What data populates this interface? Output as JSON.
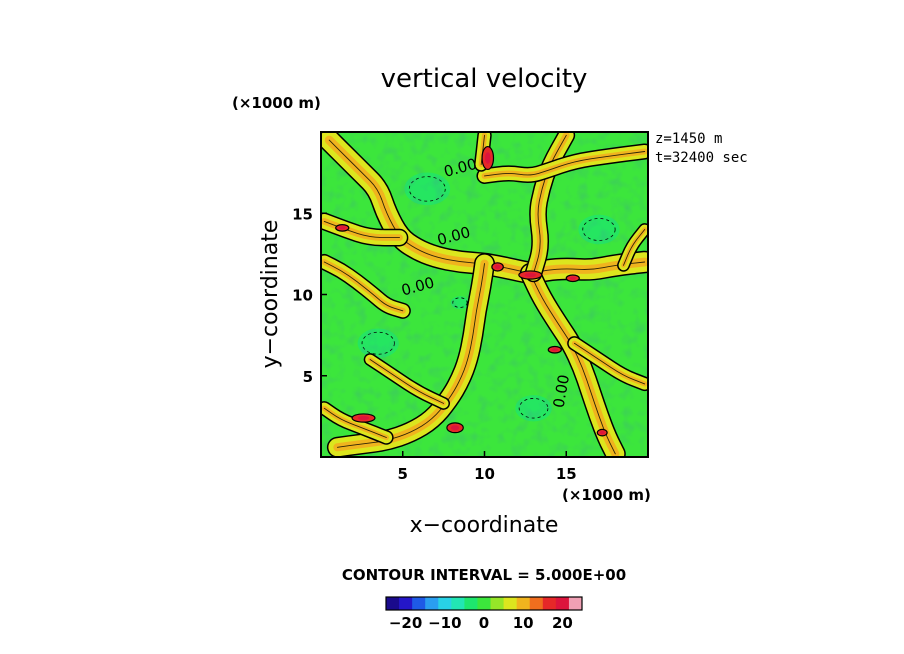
{
  "chart_data": {
    "type": "heatmap",
    "title": "vertical velocity",
    "xlabel": "x−coordinate",
    "ylabel": "y−coordinate",
    "x_unit": "(×1000 m)",
    "y_unit": "(×1000 m)",
    "xlim": [
      0,
      20
    ],
    "ylim": [
      0,
      20
    ],
    "x_ticks": [
      5,
      10,
      15
    ],
    "y_ticks": [
      5,
      10,
      15
    ],
    "x_tick_labels": [
      "5",
      "10",
      "15"
    ],
    "y_tick_labels": [
      "5",
      "10",
      "15"
    ],
    "info_lines": [
      "z=1450  m",
      "t=32400  sec"
    ],
    "contour_interval_text": "CONTOUR INTERVAL = 5.000E+00",
    "contour_interval": 5.0,
    "contour_labels": [
      {
        "text": "0.00",
        "x": 8.6,
        "y": 17.5
      },
      {
        "text": "0.00",
        "x": 8.2,
        "y": 13.3
      },
      {
        "text": "0.00",
        "x": 6.0,
        "y": 10.2
      },
      {
        "text": "0.00",
        "x": 15.0,
        "y": 4.0
      }
    ],
    "colorbar": {
      "range": [
        -25,
        25
      ],
      "tick_values": [
        -20,
        -10,
        0,
        10,
        20
      ],
      "tick_labels": [
        "−20",
        "−10",
        "0",
        "10",
        "20"
      ],
      "colors": [
        "#1a0a8c",
        "#2416c8",
        "#1e5ae6",
        "#2a9ef0",
        "#28d2e6",
        "#22e6b4",
        "#1ee66e",
        "#3ce63c",
        "#96e628",
        "#dce61e",
        "#f0b41e",
        "#f06e1e",
        "#e62828",
        "#dc143c",
        "#f0a0b4"
      ]
    },
    "field_description_values": {
      "background_value": 0,
      "updraft_band_values": [
        5,
        10
      ],
      "updraft_core_values": [
        15,
        20
      ],
      "downdraft_values": [
        -5,
        -10
      ]
    },
    "updraft_bands": [
      {
        "points": [
          [
            0.5,
            19.5
          ],
          [
            1.5,
            18.5
          ],
          [
            2.5,
            17.5
          ],
          [
            3.5,
            16.5
          ],
          [
            4.0,
            15.0
          ],
          [
            4.8,
            13.5
          ],
          [
            5.8,
            12.8
          ],
          [
            7.0,
            12.3
          ],
          [
            8.5,
            12.0
          ],
          [
            10.0,
            11.9
          ],
          [
            11.5,
            11.6
          ],
          [
            12.8,
            11.3
          ],
          [
            13.8,
            11.5
          ],
          [
            15.0,
            11.6
          ],
          [
            16.5,
            11.5
          ],
          [
            18.0,
            11.8
          ],
          [
            19.8,
            12.0
          ]
        ],
        "width": 1.2
      },
      {
        "points": [
          [
            0.2,
            14.5
          ],
          [
            1.5,
            14.0
          ],
          [
            3.0,
            13.5
          ],
          [
            4.8,
            13.5
          ]
        ],
        "width": 0.9
      },
      {
        "points": [
          [
            0.2,
            12.0
          ],
          [
            1.2,
            11.5
          ],
          [
            2.2,
            10.8
          ],
          [
            3.2,
            10.0
          ],
          [
            4.0,
            9.3
          ],
          [
            5.0,
            9.0
          ]
        ],
        "width": 0.8
      },
      {
        "points": [
          [
            10.0,
            11.9
          ],
          [
            9.8,
            10.5
          ],
          [
            9.5,
            9.0
          ],
          [
            9.3,
            7.5
          ],
          [
            9.0,
            6.0
          ],
          [
            8.5,
            4.7
          ],
          [
            7.8,
            3.5
          ],
          [
            6.8,
            2.3
          ],
          [
            5.5,
            1.5
          ],
          [
            4.0,
            1.0
          ],
          [
            2.5,
            0.8
          ],
          [
            1.0,
            0.6
          ]
        ],
        "width": 1.1
      },
      {
        "points": [
          [
            12.8,
            11.3
          ],
          [
            13.5,
            9.8
          ],
          [
            14.5,
            8.2
          ],
          [
            15.3,
            7.0
          ],
          [
            16.0,
            5.5
          ],
          [
            16.5,
            4.0
          ],
          [
            17.0,
            2.5
          ],
          [
            17.5,
            1.2
          ],
          [
            18.0,
            0.2
          ]
        ],
        "width": 1.1
      },
      {
        "points": [
          [
            13.0,
            11.3
          ],
          [
            13.5,
            13.0
          ],
          [
            13.2,
            15.0
          ],
          [
            13.5,
            16.5
          ],
          [
            14.0,
            18.0
          ],
          [
            15.0,
            19.8
          ]
        ],
        "width": 0.9
      },
      {
        "points": [
          [
            10.0,
            17.3
          ],
          [
            11.5,
            17.5
          ],
          [
            12.8,
            17.3
          ],
          [
            13.8,
            17.6
          ],
          [
            15.5,
            18.2
          ],
          [
            17.5,
            18.5
          ],
          [
            19.8,
            18.8
          ]
        ],
        "width": 0.8
      },
      {
        "points": [
          [
            9.8,
            18.0
          ],
          [
            10.0,
            19.8
          ]
        ],
        "width": 0.7
      },
      {
        "points": [
          [
            0.2,
            3.0
          ],
          [
            1.2,
            2.3
          ],
          [
            2.5,
            1.8
          ],
          [
            4.0,
            1.2
          ]
        ],
        "width": 0.7
      },
      {
        "points": [
          [
            15.5,
            7.0
          ],
          [
            17.0,
            6.0
          ],
          [
            18.5,
            5.0
          ],
          [
            19.8,
            4.5
          ]
        ],
        "width": 0.7
      },
      {
        "points": [
          [
            3.0,
            6.0
          ],
          [
            4.5,
            5.0
          ],
          [
            6.0,
            4.0
          ],
          [
            7.5,
            3.3
          ]
        ],
        "width": 0.6
      },
      {
        "points": [
          [
            18.5,
            11.8
          ],
          [
            19.0,
            13.0
          ],
          [
            19.8,
            14.0
          ]
        ],
        "width": 0.6
      }
    ],
    "updraft_cores": [
      {
        "x": 10.2,
        "y": 18.4,
        "rx": 0.35,
        "ry": 0.7
      },
      {
        "x": 12.8,
        "y": 11.2,
        "rx": 0.7,
        "ry": 0.25
      },
      {
        "x": 10.8,
        "y": 11.7,
        "rx": 0.35,
        "ry": 0.25
      },
      {
        "x": 2.6,
        "y": 2.4,
        "rx": 0.7,
        "ry": 0.25
      },
      {
        "x": 8.2,
        "y": 1.8,
        "rx": 0.5,
        "ry": 0.3
      },
      {
        "x": 15.4,
        "y": 11.0,
        "rx": 0.4,
        "ry": 0.2
      },
      {
        "x": 14.3,
        "y": 6.6,
        "rx": 0.4,
        "ry": 0.2
      },
      {
        "x": 1.3,
        "y": 14.1,
        "rx": 0.4,
        "ry": 0.2
      },
      {
        "x": 17.2,
        "y": 1.5,
        "rx": 0.3,
        "ry": 0.2
      }
    ],
    "downdraft_patches": [
      {
        "x": 8.5,
        "y": 9.5,
        "r": 0.4
      },
      {
        "x": 6.5,
        "y": 16.5,
        "r": 1.0
      },
      {
        "x": 3.5,
        "y": 7.0,
        "r": 0.9
      },
      {
        "x": 13.0,
        "y": 3.0,
        "r": 0.8
      },
      {
        "x": 17.0,
        "y": 14.0,
        "r": 0.9
      }
    ]
  }
}
